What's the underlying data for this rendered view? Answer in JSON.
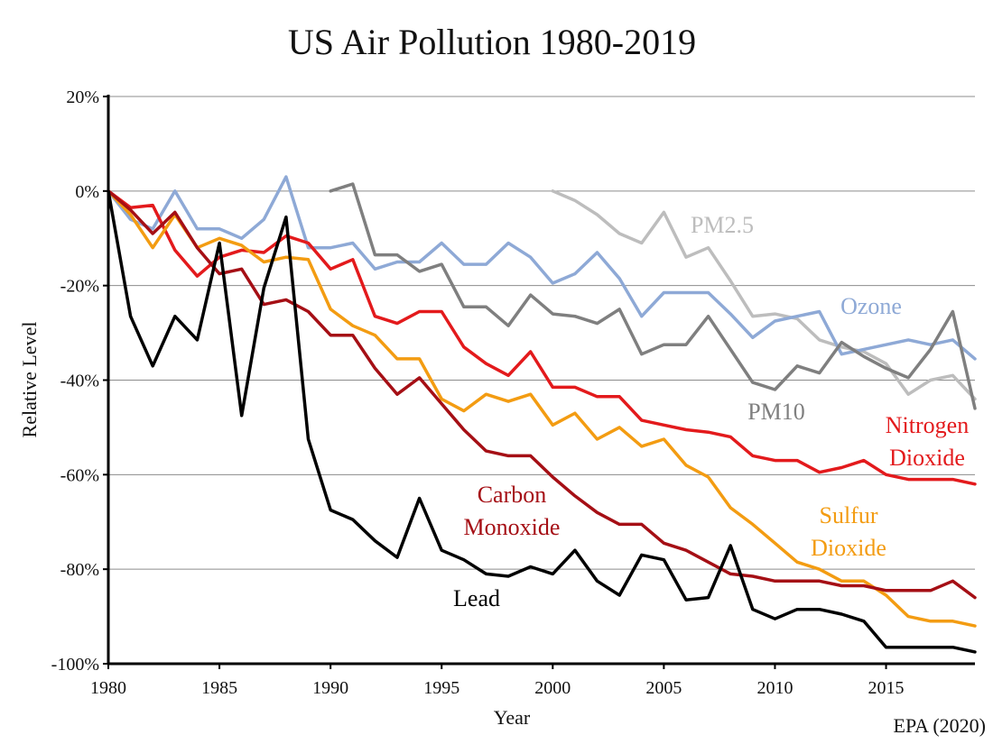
{
  "chart_data": {
    "type": "line",
    "title": "US Air Pollution 1980-2019",
    "xlabel": "Year",
    "ylabel": "Relative Level",
    "source": "EPA (2020)",
    "xlim": [
      1980,
      2019
    ],
    "ylim": [
      -100,
      20
    ],
    "x_ticks": [
      1980,
      1985,
      1990,
      1995,
      2000,
      2005,
      2010,
      2015
    ],
    "x_tick_labels": [
      "1980",
      "1985",
      "1990",
      "1995",
      "2000",
      "2005",
      "2010",
      "2015"
    ],
    "y_ticks": [
      20,
      0,
      -20,
      -40,
      -60,
      -80,
      -100
    ],
    "y_tick_labels": [
      "20%",
      "0%",
      "-20%",
      "-40%",
      "-60%",
      "-80%",
      "-100%"
    ],
    "grid": true,
    "legend": "inline labels",
    "series": [
      {
        "key": "pm25",
        "name": "PM2.5",
        "color": "#bdbdbd",
        "x": [
          2000,
          2001,
          2002,
          2003,
          2004,
          2005,
          2006,
          2007,
          2008,
          2009,
          2010,
          2011,
          2012,
          2013,
          2014,
          2015,
          2016,
          2017,
          2018,
          2019
        ],
        "values": [
          0,
          -2,
          -5,
          -9,
          -11,
          -4.5,
          -14,
          -12,
          -19,
          -26.5,
          -26,
          -27,
          -31.5,
          -33,
          -34,
          -36.5,
          -43,
          -40,
          -39,
          -44
        ]
      },
      {
        "key": "ozone",
        "name": "Ozone",
        "color": "#8ea9d6",
        "x": [
          1980,
          1981,
          1982,
          1983,
          1984,
          1985,
          1986,
          1987,
          1988,
          1989,
          1990,
          1991,
          1992,
          1993,
          1994,
          1995,
          1996,
          1997,
          1998,
          1999,
          2000,
          2001,
          2002,
          2003,
          2004,
          2005,
          2006,
          2007,
          2008,
          2009,
          2010,
          2011,
          2012,
          2013,
          2014,
          2015,
          2016,
          2017,
          2018,
          2019
        ],
        "values": [
          0,
          -6,
          -8,
          0,
          -8,
          -8,
          -10,
          -6,
          3,
          -12,
          -12,
          -11,
          -16.5,
          -15,
          -15,
          -11,
          -15.5,
          -15.5,
          -11,
          -14,
          -19.5,
          -17.5,
          -13,
          -18.5,
          -26.5,
          -21.5,
          -21.5,
          -21.5,
          -26,
          -31,
          -27.5,
          -26.5,
          -25.5,
          -34.5,
          -33.5,
          -32.5,
          -31.5,
          -32.5,
          -31.5,
          -35.5
        ]
      },
      {
        "key": "pm10",
        "name": "PM10",
        "color": "#7f7f7f",
        "x": [
          1990,
          1991,
          1992,
          1993,
          1994,
          1995,
          1996,
          1997,
          1998,
          1999,
          2000,
          2001,
          2002,
          2003,
          2004,
          2005,
          2006,
          2007,
          2008,
          2009,
          2010,
          2011,
          2012,
          2013,
          2014,
          2015,
          2016,
          2017,
          2018,
          2019
        ],
        "values": [
          0,
          1.5,
          -13.5,
          -13.5,
          -17,
          -15.5,
          -24.5,
          -24.5,
          -28.5,
          -22,
          -26,
          -26.5,
          -28,
          -25,
          -34.5,
          -32.5,
          -32.5,
          -26.5,
          -33.5,
          -40.5,
          -42,
          -37,
          -38.5,
          -32,
          -35,
          -37.5,
          -39.5,
          -33.5,
          -25.5,
          -46
        ]
      },
      {
        "key": "nitrogen-dioxide",
        "name": "Nitrogen Dioxide",
        "label_lines": [
          "Nitrogen",
          "Dioxide"
        ],
        "color": "#e31a1c",
        "x": [
          1980,
          1981,
          1982,
          1983,
          1984,
          1985,
          1986,
          1987,
          1988,
          1989,
          1990,
          1991,
          1992,
          1993,
          1994,
          1995,
          1996,
          1997,
          1998,
          1999,
          2000,
          2001,
          2002,
          2003,
          2004,
          2005,
          2006,
          2007,
          2008,
          2009,
          2010,
          2011,
          2012,
          2013,
          2014,
          2015,
          2016,
          2017,
          2018,
          2019
        ],
        "values": [
          0,
          -3.5,
          -3,
          -12.5,
          -18,
          -14,
          -12.5,
          -13,
          -9.5,
          -11,
          -16.5,
          -14.5,
          -26.5,
          -28,
          -25.5,
          -25.5,
          -33,
          -36.5,
          -39,
          -34,
          -41.5,
          -41.5,
          -43.5,
          -43.5,
          -48.5,
          -49.5,
          -50.5,
          -51,
          -52,
          -56,
          -57,
          -57,
          -59.5,
          -58.5,
          -57,
          -60,
          -61,
          -61,
          -61,
          -62
        ]
      },
      {
        "key": "sulfur-dioxide",
        "name": "Sulfur Dioxide",
        "label_lines": [
          "Sulfur",
          "Dioxide"
        ],
        "color": "#f39c12",
        "x": [
          1980,
          1981,
          1982,
          1983,
          1984,
          1985,
          1986,
          1987,
          1988,
          1989,
          1990,
          1991,
          1992,
          1993,
          1994,
          1995,
          1996,
          1997,
          1998,
          1999,
          2000,
          2001,
          2002,
          2003,
          2004,
          2005,
          2006,
          2007,
          2008,
          2009,
          2010,
          2011,
          2012,
          2013,
          2014,
          2015,
          2016,
          2017,
          2018,
          2019
        ],
        "values": [
          0,
          -5,
          -12,
          -5,
          -12,
          -10,
          -11.5,
          -15,
          -14,
          -14.5,
          -25,
          -28.5,
          -30.5,
          -35.5,
          -35.5,
          -44,
          -46.5,
          -43,
          -44.5,
          -43,
          -49.5,
          -47,
          -52.5,
          -50,
          -54,
          -52.5,
          -58,
          -60.5,
          -67,
          -70.5,
          -74.5,
          -78.5,
          -80,
          -82.5,
          -82.5,
          -85.5,
          -90,
          -91,
          -91,
          -92
        ]
      },
      {
        "key": "carbon-monoxide",
        "name": "Carbon Monoxide",
        "label_lines": [
          "Carbon",
          "Monoxide"
        ],
        "color": "#a50f15",
        "x": [
          1980,
          1981,
          1982,
          1983,
          1984,
          1985,
          1986,
          1987,
          1988,
          1989,
          1990,
          1991,
          1992,
          1993,
          1994,
          1995,
          1996,
          1997,
          1998,
          1999,
          2000,
          2001,
          2002,
          2003,
          2004,
          2005,
          2006,
          2007,
          2008,
          2009,
          2010,
          2011,
          2012,
          2013,
          2014,
          2015,
          2016,
          2017,
          2018,
          2019
        ],
        "values": [
          0,
          -4,
          -9,
          -4.5,
          -12,
          -17.5,
          -16.5,
          -24,
          -23,
          -25.5,
          -30.5,
          -30.5,
          -37.5,
          -43,
          -39.5,
          -45,
          -50.5,
          -55,
          -56,
          -56,
          -60.5,
          -64.5,
          -68,
          -70.5,
          -70.5,
          -74.5,
          -76,
          -78.5,
          -81,
          -81.5,
          -82.5,
          -82.5,
          -82.5,
          -83.5,
          -83.5,
          -84.5,
          -84.5,
          -84.5,
          -82.5,
          -86
        ]
      },
      {
        "key": "lead",
        "name": "Lead",
        "color": "#000000",
        "x": [
          1980,
          1981,
          1982,
          1983,
          1984,
          1985,
          1986,
          1987,
          1988,
          1989,
          1990,
          1991,
          1992,
          1993,
          1994,
          1995,
          1996,
          1997,
          1998,
          1999,
          2000,
          2001,
          2002,
          2003,
          2004,
          2005,
          2006,
          2007,
          2008,
          2009,
          2010,
          2011,
          2012,
          2013,
          2014,
          2015,
          2016,
          2017,
          2018,
          2019
        ],
        "values": [
          0,
          -26.5,
          -37,
          -26.5,
          -31.5,
          -11,
          -47.5,
          -20.5,
          -5.5,
          -52.5,
          -67.5,
          -69.5,
          -74,
          -77.5,
          -65,
          -76,
          -78,
          -81,
          -81.5,
          -79.5,
          -81,
          -76,
          -82.5,
          -85.5,
          -77,
          -78,
          -86.5,
          -86,
          -75,
          -88.5,
          -90.5,
          -88.5,
          -88.5,
          -89.5,
          -91,
          -96.5,
          -96.5,
          -96.5,
          -96.5,
          -97.5
        ]
      }
    ]
  }
}
